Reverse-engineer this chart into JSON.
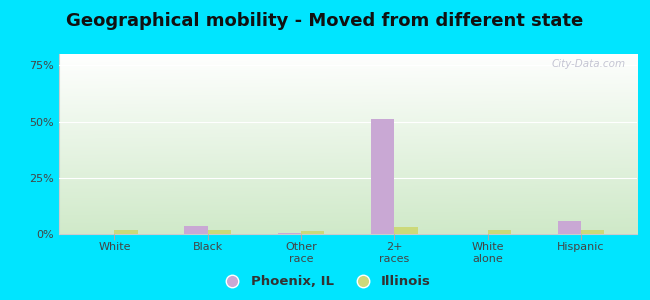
{
  "title": "Geographical mobility - Moved from different state",
  "categories": [
    "White",
    "Black",
    "Other\nrace",
    "2+\nraces",
    "White\nalone",
    "Hispanic"
  ],
  "phoenix_values": [
    0.0,
    3.5,
    0.3,
    51.0,
    0.0,
    6.0
  ],
  "illinois_values": [
    2.0,
    2.0,
    1.2,
    3.0,
    2.0,
    1.8
  ],
  "phoenix_color": "#c9a8d4",
  "illinois_color": "#ccd97a",
  "bar_width": 0.25,
  "ylim": [
    0,
    80
  ],
  "yticks": [
    0,
    25,
    50,
    75
  ],
  "ytick_labels": [
    "0%",
    "25%",
    "50%",
    "75%"
  ],
  "bg_gradient_top": "#ffffff",
  "bg_gradient_bottom": "#c8e6c0",
  "outer_bg": "#00e5ff",
  "legend_phoenix": "Phoenix, IL",
  "legend_illinois": "Illinois",
  "watermark": "City-Data.com",
  "title_fontsize": 13,
  "tick_fontsize": 8
}
